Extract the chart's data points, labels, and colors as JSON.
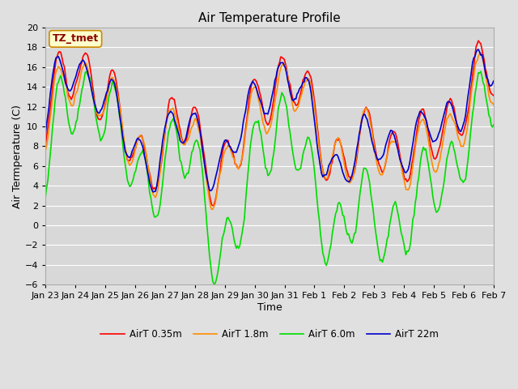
{
  "title": "Air Temperature Profile",
  "xlabel": "Time",
  "ylabel": "Air Termperature (C)",
  "ylim": [
    -6,
    20
  ],
  "yticks": [
    -6,
    -4,
    -2,
    0,
    2,
    4,
    6,
    8,
    10,
    12,
    14,
    16,
    18,
    20
  ],
  "x_labels": [
    "Jan 23",
    "Jan 24",
    "Jan 25",
    "Jan 26",
    "Jan 27",
    "Jan 28",
    "Jan 29",
    "Jan 30",
    "Jan 31",
    "Feb 1",
    "Feb 2",
    "Feb 3",
    "Feb 4",
    "Feb 5",
    "Feb 6",
    "Feb 7"
  ],
  "annotation_text": "TZ_tmet",
  "annotation_color": "#8B0000",
  "annotation_bg": "#FFFFCC",
  "annotation_edge": "#CC8800",
  "line_colors": [
    "#FF0000",
    "#FF8C00",
    "#00DD00",
    "#0000CC"
  ],
  "line_labels": [
    "AirT 0.35m",
    "AirT 1.8m",
    "AirT 6.0m",
    "AirT 22m"
  ],
  "bg_color": "#E0E0E0",
  "plot_bg": "#D8D8D8",
  "grid_color": "#FFFFFF",
  "title_fontsize": 11,
  "label_fontsize": 9,
  "tick_fontsize": 8
}
